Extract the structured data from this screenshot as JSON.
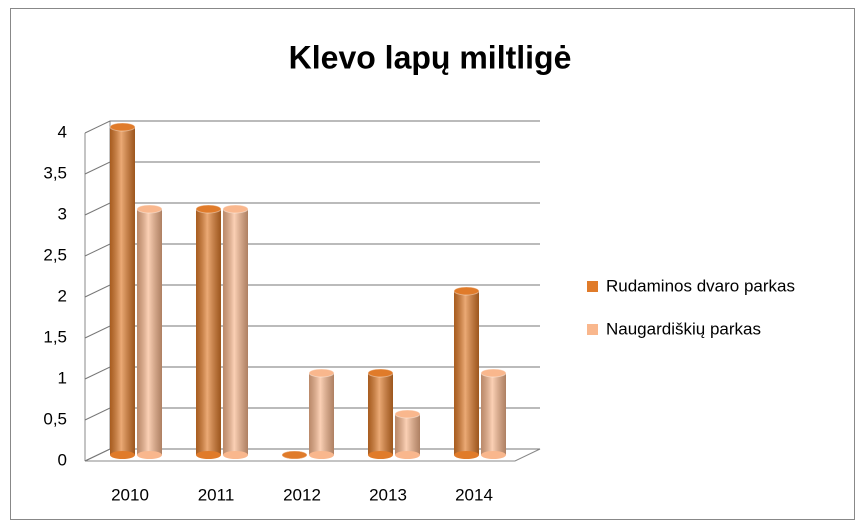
{
  "chart_data": {
    "type": "bar3d",
    "title": "Klevo lapų miltligė",
    "categories": [
      "2010",
      "2011",
      "2012",
      "2013",
      "2014"
    ],
    "series": [
      {
        "name": "Rudaminos dvaro parkas",
        "color": "#e07b2a",
        "values": [
          4,
          3,
          0,
          1,
          2
        ]
      },
      {
        "name": "Naugardiškių parkas",
        "color": "#f9b78d",
        "values": [
          3,
          3,
          1,
          0.5,
          1
        ]
      }
    ],
    "ylim": [
      0,
      4
    ],
    "yticks": [
      0,
      {
        "value": 0.5,
        "label": "0,5"
      },
      1,
      {
        "value": 1.5,
        "label": "1,5"
      },
      2,
      {
        "value": 2.5,
        "label": "2,5"
      },
      3,
      {
        "value": 3.5,
        "label": "3,5"
      },
      4
    ],
    "grid": true,
    "legend": "right"
  }
}
